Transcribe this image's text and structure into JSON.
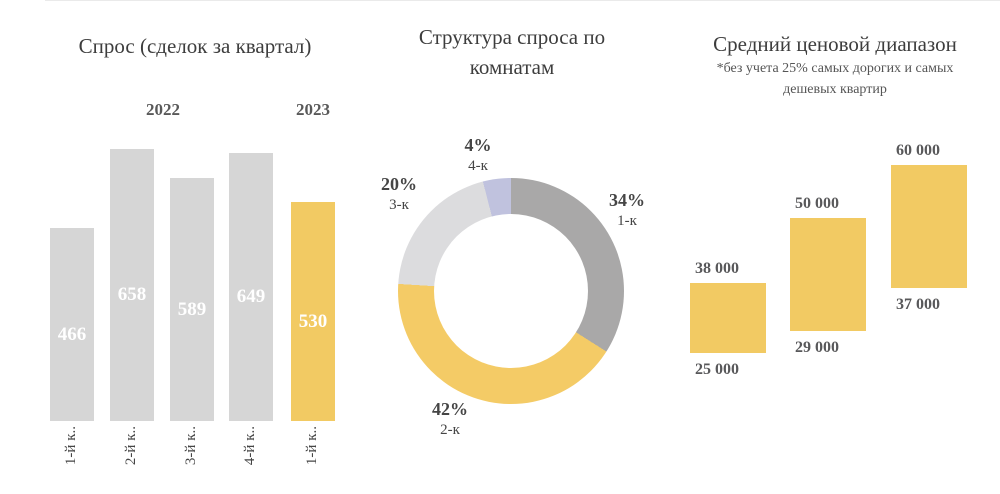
{
  "colors": {
    "bar_gray": "#d6d6d6",
    "accent_yellow": "#f2ca63",
    "donut_gray": "#a9a8a8",
    "donut_yellow": "#f4cb66",
    "donut_lightgray": "#dcdcde",
    "donut_lavender": "#c0c2de",
    "title_text": "#3d3d3d",
    "label_text": "#595959",
    "bar_value_text": "#ffffff"
  },
  "chart_data": [
    {
      "type": "bar",
      "title": "Спрос (сделок за квартал)",
      "group_labels": [
        "2022",
        "2023"
      ],
      "categories": [
        "1-й к..",
        "2-й к..",
        "3-й к..",
        "4-й к..",
        "1-й к.."
      ],
      "values": [
        466,
        658,
        589,
        649,
        530
      ],
      "value_labels": [
        "466",
        "658",
        "589",
        "649",
        "530"
      ],
      "bar_colors": [
        "#d6d6d6",
        "#d6d6d6",
        "#d6d6d6",
        "#d6d6d6",
        "#f2ca63"
      ],
      "ylim": [
        0,
        700
      ],
      "legend": "none",
      "grid": false
    },
    {
      "type": "pie",
      "title": "Структура спроса по комнатам",
      "labels": [
        "1-к",
        "2-к",
        "3-к",
        "4-к"
      ],
      "values": [
        34,
        42,
        20,
        4
      ],
      "value_labels": [
        "34%",
        "42%",
        "20%",
        "4%"
      ],
      "colors": [
        "#a9a8a8",
        "#f4cb66",
        "#dcdcde",
        "#c0c2de"
      ],
      "donut": true,
      "start_angle_deg": 0,
      "direction": "clockwise"
    },
    {
      "type": "range-bar",
      "title": "Средний ценовой диапазон",
      "subtitle": "*без учета 25% самых дорогих и самых дешевых квартир",
      "ranges": [
        [
          25000,
          38000
        ],
        [
          29000,
          50000
        ],
        [
          37000,
          60000
        ]
      ],
      "range_labels": [
        [
          "25 000",
          "38 000"
        ],
        [
          "29 000",
          "50 000"
        ],
        [
          "37 000",
          "60 000"
        ]
      ],
      "bar_color": "#f2ca63",
      "grid": false
    }
  ]
}
